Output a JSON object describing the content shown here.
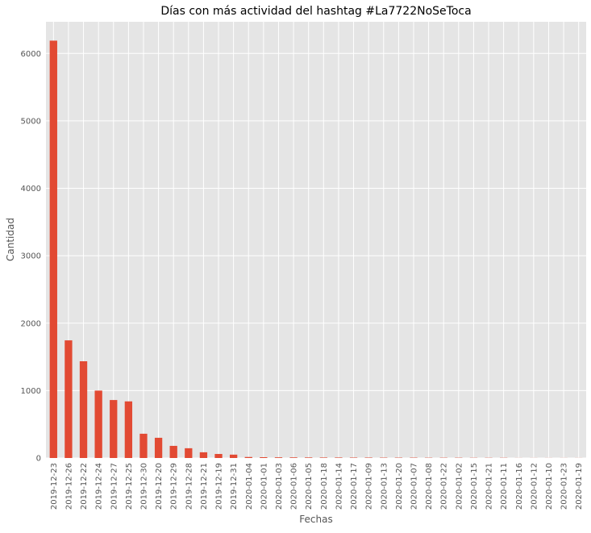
{
  "chart_data": {
    "type": "bar",
    "title": "Días con más actividad del hashtag #La7722NoSeToca",
    "x_label": "Fechas",
    "y_label": "Cantidad",
    "categories": [
      "2019-12-23",
      "2019-12-26",
      "2019-12-22",
      "2019-12-24",
      "2019-12-27",
      "2019-12-25",
      "2019-12-30",
      "2019-12-20",
      "2019-12-29",
      "2019-12-28",
      "2019-12-21",
      "2019-12-19",
      "2019-12-31",
      "2020-01-04",
      "2020-01-01",
      "2020-01-03",
      "2020-01-06",
      "2020-01-05",
      "2020-01-18",
      "2020-01-14",
      "2020-01-17",
      "2020-01-09",
      "2020-01-13",
      "2020-01-20",
      "2020-01-07",
      "2020-01-08",
      "2020-01-22",
      "2020-01-02",
      "2020-01-15",
      "2020-01-21",
      "2020-01-11",
      "2020-01-16",
      "2020-01-12",
      "2020-01-10",
      "2020-01-23",
      "2020-01-19"
    ],
    "values": [
      6190,
      1745,
      1435,
      1000,
      860,
      840,
      360,
      300,
      180,
      145,
      85,
      60,
      50,
      15,
      12,
      10,
      9,
      8,
      7,
      7,
      6,
      6,
      5,
      5,
      5,
      4,
      4,
      4,
      3,
      3,
      3,
      1,
      1,
      1,
      1,
      1
    ],
    "color": "#e24a33",
    "ylim": [
      0,
      6470
    ],
    "yticks": [
      0,
      1000,
      2000,
      3000,
      4000,
      5000,
      6000
    ],
    "grid": true
  }
}
